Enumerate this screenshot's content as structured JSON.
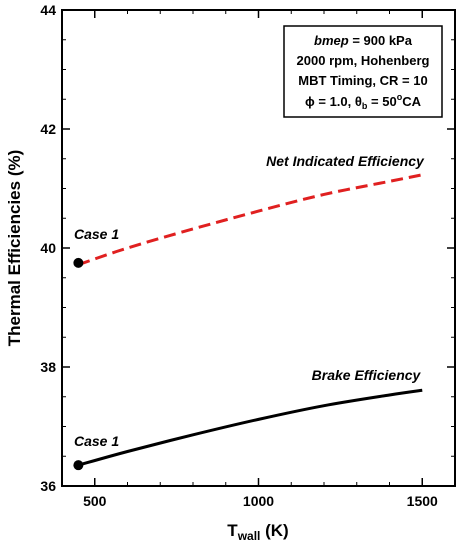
{
  "chart_data": {
    "type": "line",
    "xlabel_main": "T",
    "xlabel_sub": "wall",
    "xlabel_unit": " (K)",
    "ylabel": "Thermal Efficiencies (%)",
    "xlim": [
      400,
      1600
    ],
    "ylim": [
      36,
      44
    ],
    "xticks": [
      500,
      1000,
      1500
    ],
    "yticks": [
      36,
      38,
      40,
      42,
      44
    ],
    "grid": false,
    "series": [
      {
        "name": "Net Indicated Efficiency",
        "style": "dashed",
        "color": "#e02020",
        "x": [
          450,
          600,
          800,
          1000,
          1200,
          1400,
          1500
        ],
        "y": [
          39.72,
          40.0,
          40.32,
          40.62,
          40.9,
          41.12,
          41.23
        ]
      },
      {
        "name": "Brake Efficiency",
        "style": "solid",
        "color": "#000000",
        "x": [
          450,
          600,
          800,
          1000,
          1200,
          1400,
          1500
        ],
        "y": [
          36.35,
          36.58,
          36.86,
          37.12,
          37.35,
          37.53,
          37.61
        ]
      }
    ],
    "markers": [
      {
        "label": "Case 1",
        "x": 450,
        "y": 39.75
      },
      {
        "label": "Case 1",
        "x": 450,
        "y": 36.35
      }
    ],
    "legend_box": {
      "position": "top-right",
      "lines": [
        [
          "bmep",
          " = 900 kPa"
        ],
        [
          "2000 rpm, Hohenberg"
        ],
        [
          "MBT Timing, CR = 10"
        ],
        [
          "ϕ = 1.0, θ",
          "b",
          " = 50",
          "o",
          "CA"
        ]
      ]
    }
  }
}
